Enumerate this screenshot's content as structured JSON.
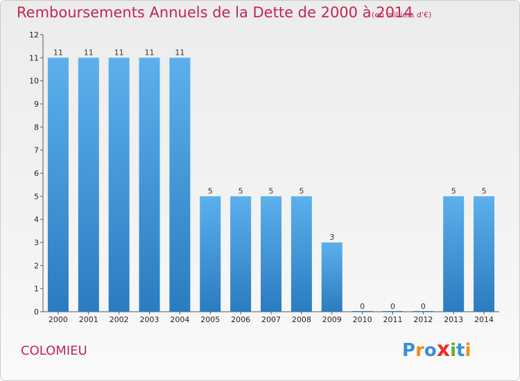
{
  "title": "Remboursements Annuels de la Dette de 2000 à 2014",
  "subtitle": "(en milliers d'€)",
  "commune": "COLOMIEU",
  "logo": {
    "text": "Proxiti",
    "letters": [
      "P",
      "r",
      "o",
      "x",
      "i",
      "t",
      "i"
    ],
    "colors": [
      "#3a8fd6",
      "#f08a1c",
      "#3a8fd6",
      "#e5322d",
      "#5ab031",
      "#3a8fd6",
      "#f08a1c"
    ]
  },
  "colors": {
    "bar_top": "#5cb0ec",
    "bar_bottom": "#2a7cc0",
    "title": "#c0264f"
  },
  "chart_data": {
    "type": "bar",
    "categories": [
      "2000",
      "2001",
      "2002",
      "2003",
      "2004",
      "2005",
      "2006",
      "2007",
      "2008",
      "2009",
      "2010",
      "2011",
      "2012",
      "2013",
      "2014"
    ],
    "values": [
      11,
      11,
      11,
      11,
      11,
      5,
      5,
      5,
      5,
      3,
      0,
      0,
      0,
      5,
      5
    ],
    "data_labels": [
      "11",
      "11",
      "11",
      "11",
      "11",
      "5",
      "5",
      "5",
      "5",
      "3",
      "0",
      "0",
      "0",
      "5",
      "5"
    ],
    "title": "Remboursements Annuels de la Dette de 2000 à 2014",
    "xlabel": "",
    "ylabel": "",
    "ylim": [
      0,
      12
    ],
    "yticks": [
      0,
      1,
      2,
      3,
      4,
      5,
      6,
      7,
      8,
      9,
      10,
      11,
      12
    ],
    "grid": false,
    "legend": "none"
  }
}
